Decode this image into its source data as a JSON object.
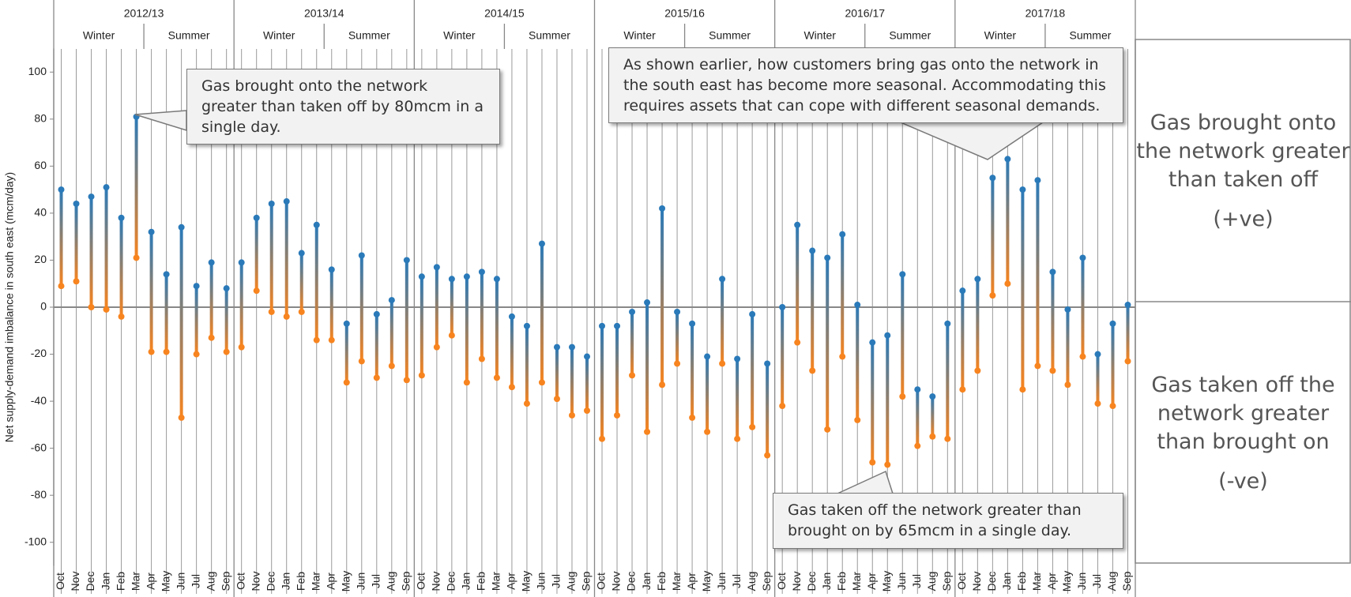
{
  "chart_data": {
    "type": "range",
    "y_label": "Net supply-demand imbalance in south east (mcm/day)",
    "years": [
      {
        "label": "2012/13",
        "seasons": [
          "Winter",
          "Summer"
        ]
      },
      {
        "label": "2013/14",
        "seasons": [
          "Winter",
          "Summer"
        ]
      },
      {
        "label": "2014/15",
        "seasons": [
          "Winter",
          "Summer"
        ]
      },
      {
        "label": "2015/16",
        "seasons": [
          "Winter",
          "Summer"
        ]
      },
      {
        "label": "2016/17",
        "seasons": [
          "Winter",
          "Summer"
        ]
      },
      {
        "label": "2017/18",
        "seasons": [
          "Winter",
          "Summer"
        ]
      }
    ],
    "categories": [
      "Oct",
      "Nov",
      "Dec",
      "Jan",
      "Feb",
      "Mar",
      "Apr",
      "May",
      "Jun",
      "Jul",
      "Aug",
      "Sep",
      "Oct",
      "Nov",
      "Dec",
      "Jan",
      "Feb",
      "Mar",
      "Apr",
      "May",
      "Jun",
      "Jul",
      "Aug",
      "Sep",
      "Oct",
      "Nov",
      "Dec",
      "Jan",
      "Feb",
      "Mar",
      "Apr",
      "May",
      "Jun",
      "Jul",
      "Aug",
      "Sep",
      "Oct",
      "Nov",
      "Dec",
      "Jan",
      "Feb",
      "Mar",
      "Apr",
      "May",
      "Jun",
      "Jul",
      "Aug",
      "Sep",
      "Oct",
      "Nov",
      "Dec",
      "Jan",
      "Feb",
      "Mar",
      "Apr",
      "May",
      "Jun",
      "Jul",
      "Aug",
      "Sep",
      "Oct",
      "Nov",
      "Dec",
      "Jan",
      "Feb",
      "Mar",
      "Apr",
      "May",
      "Jun",
      "Jul",
      "Aug",
      "Sep"
    ],
    "series": [
      {
        "color": "#2a7ab9",
        "values": [
          50,
          44,
          47,
          51,
          38,
          81,
          32,
          14,
          34,
          9,
          19,
          8,
          19,
          38,
          44,
          45,
          23,
          35,
          16,
          -7,
          22,
          -3,
          3,
          20,
          13,
          17,
          12,
          13,
          15,
          12,
          -4,
          -8,
          27,
          -17,
          -17,
          -21,
          -8,
          -8,
          -2,
          2,
          42,
          -2,
          -7,
          -21,
          12,
          -22,
          -3,
          -24,
          0,
          35,
          24,
          21,
          31,
          1,
          -15,
          -12,
          14,
          -35,
          -38,
          -7,
          7,
          12,
          55,
          63,
          50,
          54,
          15,
          -1,
          21,
          -20,
          -7,
          1
        ]
      },
      {
        "color": "#f7841f",
        "values": [
          9,
          11,
          0,
          -1,
          -4,
          21,
          -19,
          -19,
          -47,
          -20,
          -13,
          -19,
          -17,
          7,
          -2,
          -4,
          -2,
          -14,
          -14,
          -32,
          -23,
          -30,
          -25,
          -31,
          -29,
          -17,
          -12,
          -32,
          -22,
          -30,
          -34,
          -41,
          -32,
          -39,
          -46,
          -44,
          -56,
          -46,
          -29,
          -53,
          -33,
          -24,
          -47,
          -53,
          -24,
          -56,
          -51,
          -63,
          -42,
          -15,
          -27,
          -52,
          -21,
          -48,
          -66,
          -67,
          -38,
          -59,
          -55,
          -56,
          -35,
          -27,
          5,
          10,
          -35,
          -25,
          -27,
          -33,
          -21,
          -41,
          -42,
          -23
        ]
      }
    ],
    "ylim": [
      -110,
      110
    ],
    "yticks": [
      -100,
      -80,
      -60,
      -40,
      -20,
      0,
      20,
      40,
      60,
      80,
      100
    ],
    "annotations": [
      "Gas brought onto the network greater than taken off by 80mcm in a single day.",
      "As shown earlier, how customers bring gas onto the network in the south east has become more seasonal. Accommodating this requires assets that can cope with different seasonal demands.",
      "Gas taken off the network greater than brought on by 65mcm in a single day."
    ],
    "side_labels": [
      {
        "text": "Gas brought onto the network greater than taken off",
        "sign": "(+ve)"
      },
      {
        "text": "Gas taken off the network greater than brought on",
        "sign": "(-ve)"
      }
    ]
  }
}
